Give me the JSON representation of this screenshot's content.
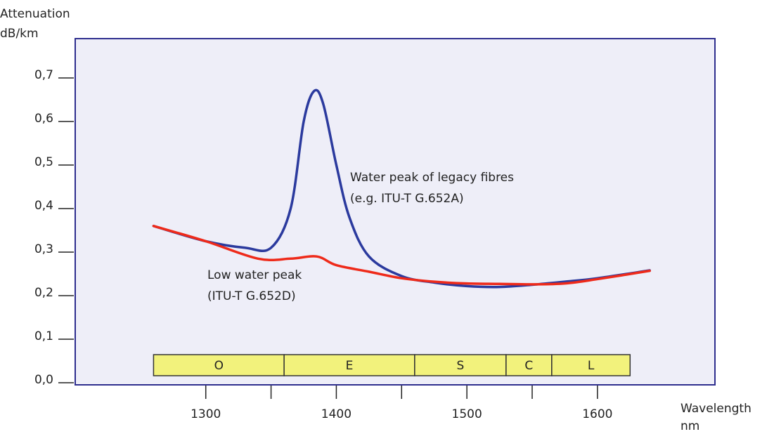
{
  "chart_data": {
    "type": "line",
    "y_axis_label": [
      "Attenuation",
      "dB/km"
    ],
    "x_axis_label": [
      "Wavelength",
      "nm"
    ],
    "xlim": [
      1200,
      1690
    ],
    "ylim": [
      0,
      0.8
    ],
    "xticks": [
      1300,
      1400,
      1500,
      1600
    ],
    "xminor_ticks": [
      1350,
      1450,
      1550
    ],
    "yticks": [
      {
        "value": 0,
        "label": "0,0"
      },
      {
        "value": 0.1,
        "label": "0,1"
      },
      {
        "value": 0.2,
        "label": "0,2"
      },
      {
        "value": 0.3,
        "label": "0,3"
      },
      {
        "value": 0.4,
        "label": "0,4"
      },
      {
        "value": 0.5,
        "label": "0,5"
      },
      {
        "value": 0.6,
        "label": "0,6"
      },
      {
        "value": 0.7,
        "label": "0,7"
      }
    ],
    "series": [
      {
        "color": "#2b3a9e",
        "x": [
          1260,
          1300,
          1330,
          1350,
          1365,
          1375,
          1383,
          1390,
          1400,
          1410,
          1425,
          1450,
          1475,
          1500,
          1525,
          1550,
          1575,
          1600,
          1640
        ],
        "values": [
          0.36,
          0.325,
          0.31,
          0.31,
          0.4,
          0.6,
          0.67,
          0.64,
          0.5,
          0.38,
          0.29,
          0.245,
          0.23,
          0.222,
          0.22,
          0.225,
          0.232,
          0.24,
          0.258
        ]
      },
      {
        "color": "#ee2a1a",
        "x": [
          1260,
          1300,
          1340,
          1365,
          1385,
          1400,
          1425,
          1450,
          1475,
          1500,
          1525,
          1550,
          1575,
          1600,
          1640
        ],
        "values": [
          0.36,
          0.325,
          0.285,
          0.285,
          0.29,
          0.27,
          0.255,
          0.24,
          0.232,
          0.228,
          0.227,
          0.226,
          0.228,
          0.238,
          0.257
        ]
      }
    ],
    "annotations": [
      {
        "lines": [
          "Water peak of legacy fibres",
          "(e.g. ITU-T G.652A)"
        ]
      },
      {
        "lines": [
          "Low water peak",
          "(ITU-T G.652D)"
        ]
      }
    ],
    "bands": [
      {
        "label": "O",
        "from": 1260,
        "to": 1360
      },
      {
        "label": "E",
        "from": 1360,
        "to": 1460
      },
      {
        "label": "S",
        "from": 1460,
        "to": 1530
      },
      {
        "label": "C",
        "from": 1530,
        "to": 1565
      },
      {
        "label": "L",
        "from": 1565,
        "to": 1625
      }
    ],
    "band_color": "#f2f27c"
  }
}
